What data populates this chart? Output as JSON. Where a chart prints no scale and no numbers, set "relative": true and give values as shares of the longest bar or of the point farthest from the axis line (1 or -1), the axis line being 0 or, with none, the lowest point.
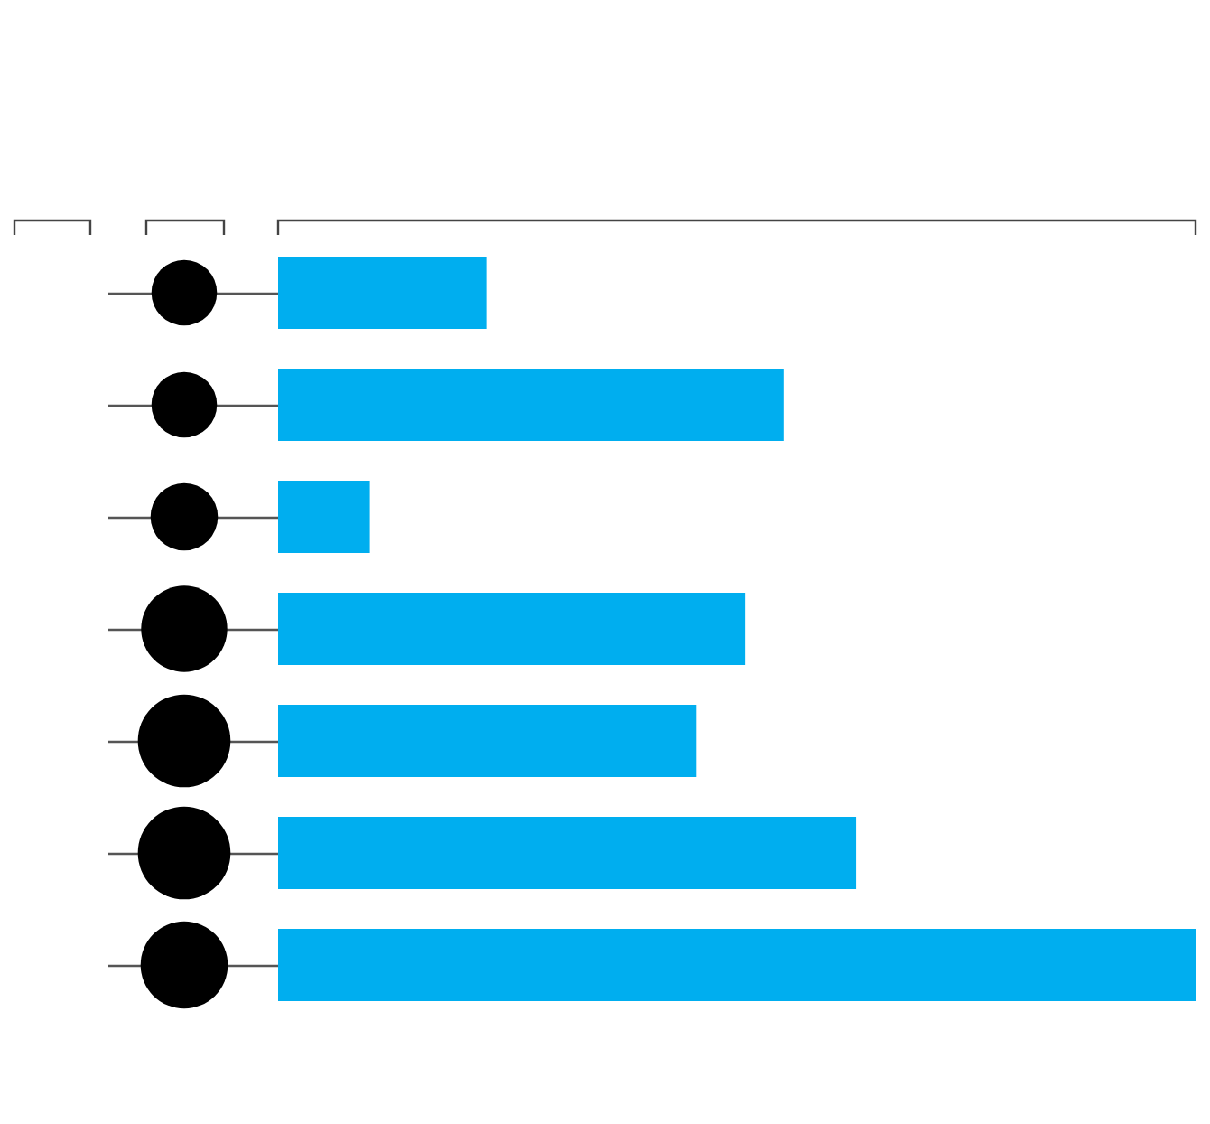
{
  "chart_data": {
    "type": "bar",
    "orientation": "horizontal",
    "relative": true,
    "categories": [
      null,
      null,
      null,
      null,
      null,
      null,
      null
    ],
    "values": [
      0.227,
      0.551,
      0.1,
      0.509,
      0.456,
      0.63,
      1
    ],
    "color": "#00aeef"
  }
}
